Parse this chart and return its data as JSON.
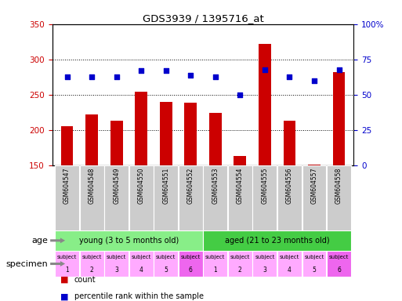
{
  "title": "GDS3939 / 1395716_at",
  "samples": [
    "GSM604547",
    "GSM604548",
    "GSM604549",
    "GSM604550",
    "GSM604551",
    "GSM604552",
    "GSM604553",
    "GSM604554",
    "GSM604555",
    "GSM604556",
    "GSM604557",
    "GSM604558"
  ],
  "counts": [
    206,
    222,
    214,
    254,
    240,
    239,
    225,
    164,
    322,
    214,
    151,
    282
  ],
  "percentile_ranks": [
    63,
    63,
    63,
    67,
    67,
    64,
    63,
    50,
    68,
    63,
    60,
    68
  ],
  "ylim_left": [
    150,
    350
  ],
  "ylim_right": [
    0,
    100
  ],
  "yticks_left": [
    150,
    200,
    250,
    300,
    350
  ],
  "yticks_right": [
    0,
    25,
    50,
    75,
    100
  ],
  "ytick_labels_right": [
    "0",
    "25",
    "50",
    "75",
    "100%"
  ],
  "bar_color": "#cc0000",
  "dot_color": "#0000cc",
  "bar_width": 0.5,
  "age_groups": [
    {
      "label": "young (3 to 5 months old)",
      "start": 0,
      "end": 6,
      "color": "#88ee88"
    },
    {
      "label": "aged (21 to 23 months old)",
      "start": 6,
      "end": 12,
      "color": "#44cc44"
    }
  ],
  "subjects": [
    "subject",
    "subject",
    "subject",
    "subject",
    "subject",
    "subject",
    "subject",
    "subject",
    "subject",
    "subject",
    "subject",
    "subject"
  ],
  "subject_nums": [
    "1",
    "2",
    "3",
    "4",
    "5",
    "6",
    "1",
    "2",
    "3",
    "4",
    "5",
    "6"
  ],
  "subject_colors_light": "#ffaaff",
  "subject_color_dark": "#ee66ee",
  "dark_indices": [
    5,
    11
  ],
  "age_label": "age",
  "specimen_label": "specimen",
  "legend_count_color": "#cc0000",
  "legend_dot_color": "#0000cc",
  "grid_color": "black",
  "bg_color": "#ffffff",
  "tick_label_color_left": "#cc0000",
  "tick_label_color_right": "#0000cc",
  "gsm_bg_color": "#cccccc",
  "arrow_color": "#888888"
}
